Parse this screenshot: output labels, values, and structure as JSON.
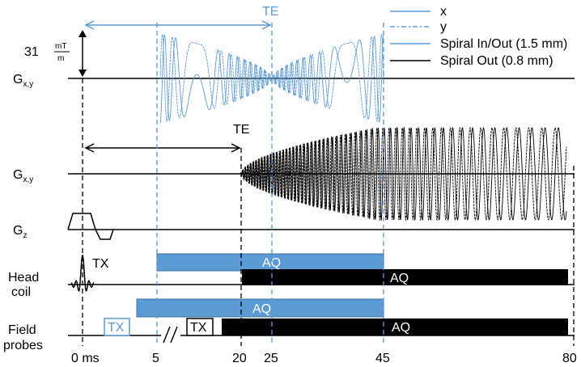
{
  "colors": {
    "blue": "#5b9bd5",
    "blue_fill": "#5b9bd5",
    "black": "#000000",
    "white": "#ffffff"
  },
  "legend": {
    "items": [
      {
        "label": "x",
        "style": "solid",
        "color": "#5b9bd5"
      },
      {
        "label": "y",
        "style": "dashdot",
        "color": "#5b9bd5"
      },
      {
        "label": "Spiral In/Out (1.5 mm)",
        "style": "solid",
        "color": "#5b9bd5"
      },
      {
        "label": "Spiral Out (0.8 mm)",
        "style": "solid",
        "color": "#000000"
      }
    ]
  },
  "amplitude": {
    "value": "31",
    "unit_top": "mT",
    "unit_bottom": "m"
  },
  "te_label": "TE",
  "rows": {
    "gxy_1": {
      "main": "G",
      "sub": "x,y"
    },
    "gxy_2": {
      "main": "G",
      "sub": "x,y"
    },
    "gz": {
      "main": "G",
      "sub": "z"
    },
    "head_coil": {
      "line1": "Head",
      "line2": "coil"
    },
    "field_probes": {
      "line1": "Field",
      "line2": "probes"
    }
  },
  "tx_label": "TX",
  "aq_label": "AQ",
  "time_axis": {
    "unit": "ms",
    "ticks": [
      {
        "t": 0,
        "label": "0 ms"
      },
      {
        "t": 5,
        "label": "5"
      },
      {
        "t": 20,
        "label": "20"
      },
      {
        "t": 25,
        "label": "25"
      },
      {
        "t": 45,
        "label": "45"
      },
      {
        "t": 80,
        "label": "80"
      }
    ]
  },
  "timing": {
    "blue_readout": {
      "start": 5,
      "end": 45,
      "echo": 25
    },
    "black_readout": {
      "start": 20,
      "end": 80
    },
    "head_coil_aq_blue": {
      "start": 5,
      "end": 45
    },
    "head_coil_aq_black": {
      "start": 20,
      "end": 80
    },
    "probe_aq_blue": {
      "start": 3,
      "end": 45
    },
    "probe_aq_black": {
      "start": 14,
      "end": 80
    }
  }
}
